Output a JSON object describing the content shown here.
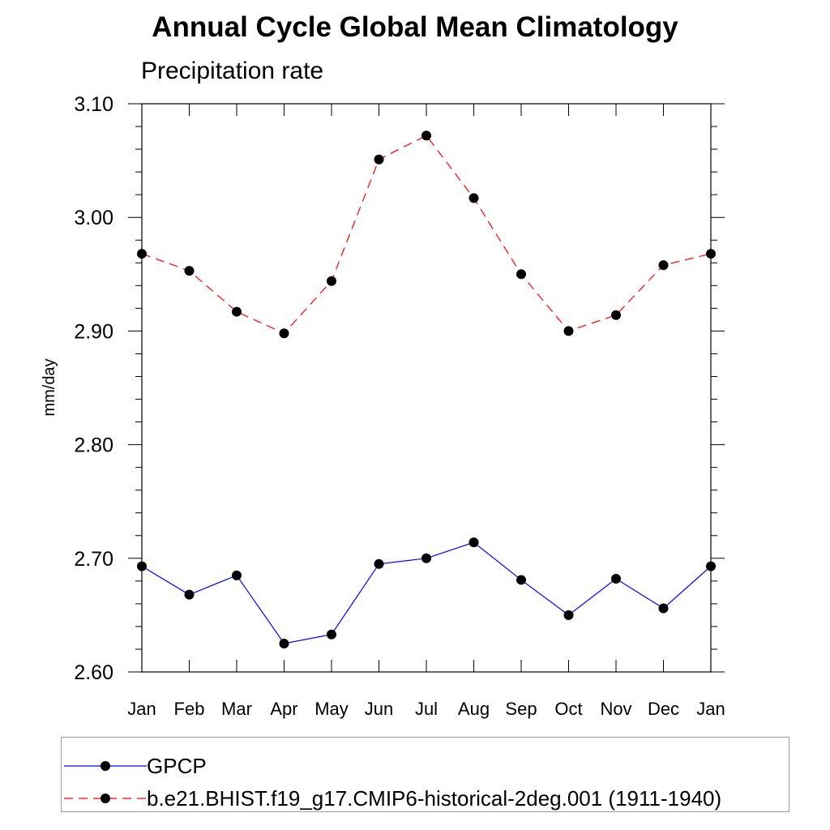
{
  "chart_data": {
    "type": "line",
    "title": "Annual Cycle Global Mean Climatology",
    "subtitle": "Precipitation rate",
    "ylabel": "mm/day",
    "xlabel": "",
    "categories": [
      "Jan",
      "Feb",
      "Mar",
      "Apr",
      "May",
      "Jun",
      "Jul",
      "Aug",
      "Sep",
      "Oct",
      "Nov",
      "Dec",
      "Jan"
    ],
    "ylim": [
      2.6,
      3.1
    ],
    "yticks": [
      "2.60",
      "2.70",
      "2.80",
      "2.90",
      "3.00",
      "3.10"
    ],
    "legend_position": "bottom",
    "grid": false,
    "series": [
      {
        "name": "GPCP",
        "color": "#0000ff",
        "line_style": "solid",
        "marker": "filled-circle",
        "values": [
          2.693,
          2.668,
          2.685,
          2.625,
          2.633,
          2.695,
          2.7,
          2.714,
          2.681,
          2.65,
          2.682,
          2.656,
          2.693
        ]
      },
      {
        "name": "b.e21.BHIST.f19_g17.CMIP6-historical-2deg.001 (1911-1940)",
        "color": "#ff0000",
        "line_style": "dashed",
        "marker": "filled-circle",
        "values": [
          2.968,
          2.953,
          2.917,
          2.898,
          2.944,
          3.051,
          3.072,
          3.017,
          2.95,
          2.9,
          2.914,
          2.958,
          2.968
        ]
      }
    ]
  }
}
